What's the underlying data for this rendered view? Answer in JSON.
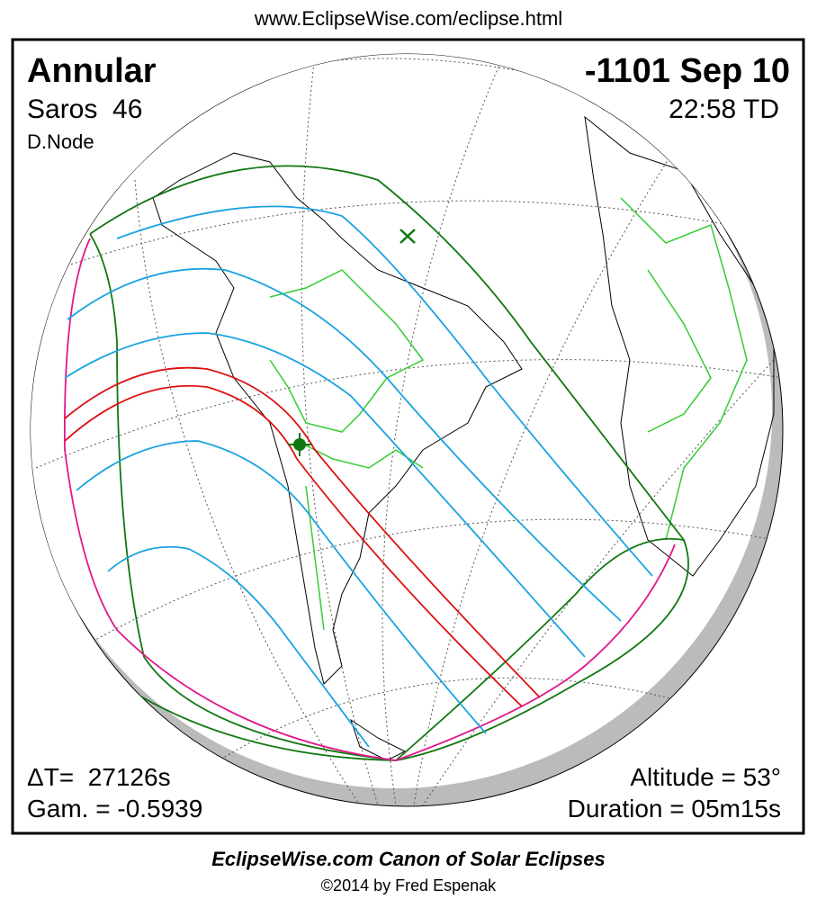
{
  "header": {
    "url": "www.EclipseWise.com/eclipse.html"
  },
  "panel": {
    "eclipse_type": "Annular",
    "saros": "Saros  46",
    "node": "D.Node",
    "date": "-1101 Sep 10",
    "time": "22:58 TD",
    "delta_t": "ΔT=  27126s",
    "gamma": "Gam. = -0.5939",
    "altitude": "Altitude = 53°",
    "duration": "Duration = 05m15s"
  },
  "footer": {
    "title": "EclipseWise.com Canon of Solar Eclipses",
    "copyright": "©2014 by Fred Espenak"
  }
}
